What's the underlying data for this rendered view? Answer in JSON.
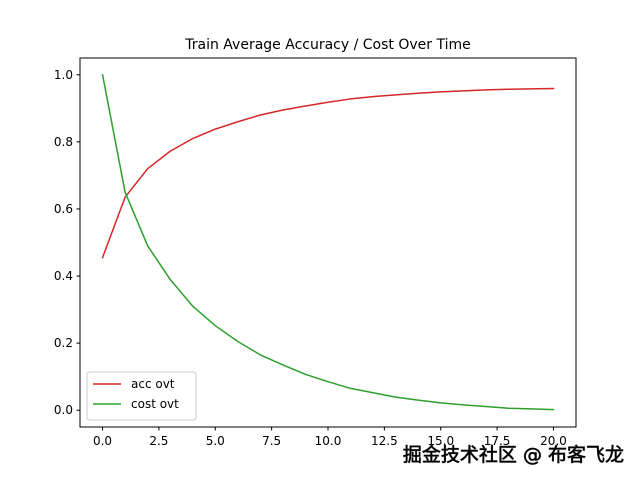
{
  "chart_data": {
    "type": "line",
    "title": "Train Average Accuracy / Cost Over Time",
    "xlabel": "",
    "ylabel": "",
    "xlim": [
      -1,
      21
    ],
    "ylim": [
      -0.05,
      1.05
    ],
    "xticks": [
      0.0,
      2.5,
      5.0,
      7.5,
      10.0,
      12.5,
      15.0,
      17.5,
      20.0
    ],
    "xtick_labels": [
      "0.0",
      "2.5",
      "5.0",
      "7.5",
      "10.0",
      "12.5",
      "15.0",
      "17.5",
      "20.0"
    ],
    "yticks": [
      0.0,
      0.2,
      0.4,
      0.6,
      0.8,
      1.0
    ],
    "ytick_labels": [
      "0.0",
      "0.2",
      "0.4",
      "0.6",
      "0.8",
      "1.0"
    ],
    "grid": false,
    "legend_position": "lower-left",
    "x": [
      0,
      1,
      2,
      3,
      4,
      5,
      6,
      7,
      8,
      9,
      10,
      11,
      12,
      13,
      14,
      15,
      16,
      17,
      18,
      19,
      20
    ],
    "series": [
      {
        "name": "acc ovt",
        "color": "#d62728",
        "values": [
          0.455,
          0.635,
          0.72,
          0.772,
          0.81,
          0.838,
          0.86,
          0.88,
          0.895,
          0.907,
          0.918,
          0.928,
          0.935,
          0.94,
          0.945,
          0.949,
          0.952,
          0.955,
          0.957,
          0.958,
          0.959
        ]
      },
      {
        "name": "cost ovt",
        "color": "#2ca02c",
        "values": [
          1.0,
          0.65,
          0.49,
          0.39,
          0.31,
          0.252,
          0.205,
          0.165,
          0.135,
          0.107,
          0.085,
          0.065,
          0.052,
          0.039,
          0.03,
          0.022,
          0.016,
          0.011,
          0.006,
          0.004,
          0.002
        ]
      }
    ]
  },
  "watermark": {
    "text": "掘金技术社区 @ 布客飞龙"
  }
}
